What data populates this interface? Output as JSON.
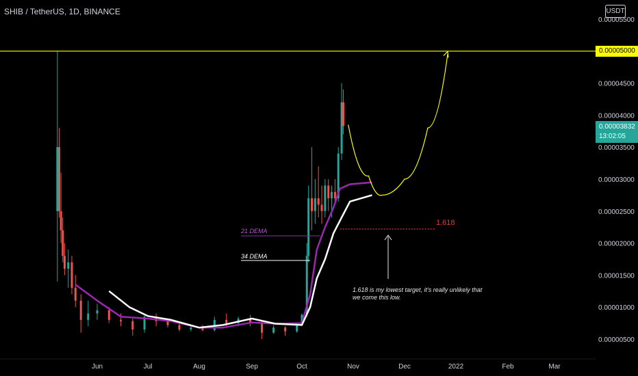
{
  "header": {
    "title": "SHIB / TetherUS, 1D, BINANCE",
    "currency_button": "USDT"
  },
  "price_tags": {
    "target": "0.00005000",
    "last_price": "0.00003832",
    "countdown": "13:02:05"
  },
  "annotations": {
    "ma21_label": "21 DEMA",
    "ma34_label": "34 DEMA",
    "fib_label": "1.618",
    "note": "1.618 is my lowest target, it's really unlikely that we come this low."
  },
  "chart_data": {
    "type": "candlestick",
    "title": "SHIB / TetherUS, 1D, BINANCE",
    "ylim": [
      3.3e-06,
      6e-06
    ],
    "y_tick_labels": [
      "0.00005500",
      "0.00005000",
      "0.00004500",
      "0.00004000",
      "0.00003500",
      "0.00003000",
      "0.00002500",
      "0.00002000",
      "0.00001500",
      "0.00001000",
      "0.00000500"
    ],
    "y_ticks": [
      5.5e-05,
      5e-05,
      4.5e-05,
      4e-05,
      3.5e-05,
      3e-05,
      2.5e-05,
      2e-05,
      1.5e-05,
      1e-05,
      5e-06
    ],
    "x_tick_labels": [
      "Jun",
      "Jul",
      "Aug",
      "Sep",
      "Oct",
      "Nov",
      "Dec",
      "2022",
      "Feb",
      "Mar"
    ],
    "x_tick_dates": [
      "2021-06-01",
      "2021-07-01",
      "2021-08-01",
      "2021-09-01",
      "2021-10-01",
      "2021-11-01",
      "2021-12-01",
      "2022-01-01",
      "2022-02-01",
      "2022-03-01"
    ],
    "xlim": [
      "2021-05-01",
      "2022-03-31"
    ],
    "grid": false,
    "colors": {
      "up": "#26a69a",
      "down": "#ef5350",
      "ma21": "#9c27b0",
      "ma34": "#ffffff",
      "target_line": "#ffff00",
      "projection": "#ffff00",
      "fib": "#e53935"
    },
    "target_price": 5e-05,
    "last_price": 3.832e-05,
    "fib_1618_price": 2.22e-05,
    "candles": [
      {
        "date": "2021-05-10",
        "o": 2.5e-05,
        "h": 5e-05,
        "l": 1.4e-05,
        "c": 3.5e-05
      },
      {
        "date": "2021-05-11",
        "o": 3.5e-05,
        "h": 3.8e-05,
        "l": 2.4e-05,
        "c": 2.5e-05
      },
      {
        "date": "2021-05-12",
        "o": 2.5e-05,
        "h": 3.1e-05,
        "l": 2e-05,
        "c": 2.2e-05
      },
      {
        "date": "2021-05-13",
        "o": 2.2e-05,
        "h": 2.4e-05,
        "l": 1.7e-05,
        "c": 1.8e-05
      },
      {
        "date": "2021-05-14",
        "o": 1.8e-05,
        "h": 2e-05,
        "l": 1.5e-05,
        "c": 1.6e-05
      },
      {
        "date": "2021-05-16",
        "o": 1.6e-05,
        "h": 1.9e-05,
        "l": 1.3e-05,
        "c": 1.7e-05
      },
      {
        "date": "2021-05-18",
        "o": 1.7e-05,
        "h": 1.8e-05,
        "l": 1.2e-05,
        "c": 1.3e-05
      },
      {
        "date": "2021-05-20",
        "o": 1.3e-05,
        "h": 1.5e-05,
        "l": 1e-05,
        "c": 1.1e-05
      },
      {
        "date": "2021-05-23",
        "o": 1.1e-05,
        "h": 1.2e-05,
        "l": 6e-06,
        "c": 8e-06
      },
      {
        "date": "2021-05-27",
        "o": 8e-06,
        "h": 1.1e-05,
        "l": 7e-06,
        "c": 9e-06
      },
      {
        "date": "2021-06-01",
        "o": 9e-06,
        "h": 1.05e-05,
        "l": 8e-06,
        "c": 9.5e-06
      },
      {
        "date": "2021-06-08",
        "o": 9.5e-06,
        "h": 1e-05,
        "l": 7.5e-06,
        "c": 8e-06
      },
      {
        "date": "2021-06-15",
        "o": 8e-06,
        "h": 9e-06,
        "l": 7e-06,
        "c": 7.8e-06
      },
      {
        "date": "2021-06-22",
        "o": 7.8e-06,
        "h": 8.2e-06,
        "l": 5.5e-06,
        "c": 6.5e-06
      },
      {
        "date": "2021-06-29",
        "o": 6.5e-06,
        "h": 9e-06,
        "l": 6e-06,
        "c": 8.5e-06
      },
      {
        "date": "2021-07-06",
        "o": 8.5e-06,
        "h": 9e-06,
        "l": 7e-06,
        "c": 7.8e-06
      },
      {
        "date": "2021-07-13",
        "o": 7.8e-06,
        "h": 8.2e-06,
        "l": 6.8e-06,
        "c": 7.2e-06
      },
      {
        "date": "2021-07-20",
        "o": 7.2e-06,
        "h": 7.4e-06,
        "l": 6.2e-06,
        "c": 6.5e-06
      },
      {
        "date": "2021-07-27",
        "o": 6.5e-06,
        "h": 7.2e-06,
        "l": 6.2e-06,
        "c": 6.8e-06
      },
      {
        "date": "2021-08-03",
        "o": 6.8e-06,
        "h": 7.2e-06,
        "l": 6.2e-06,
        "c": 6.4e-06
      },
      {
        "date": "2021-08-10",
        "o": 6.4e-06,
        "h": 8.5e-06,
        "l": 6.2e-06,
        "c": 8e-06
      },
      {
        "date": "2021-08-17",
        "o": 8e-06,
        "h": 9e-06,
        "l": 7e-06,
        "c": 7.5e-06
      },
      {
        "date": "2021-08-24",
        "o": 7.5e-06,
        "h": 8.5e-06,
        "l": 7e-06,
        "c": 8.2e-06
      },
      {
        "date": "2021-08-31",
        "o": 8.2e-06,
        "h": 8.8e-06,
        "l": 7e-06,
        "c": 7.5e-06
      },
      {
        "date": "2021-09-07",
        "o": 7.5e-06,
        "h": 7.8e-06,
        "l": 5e-06,
        "c": 6e-06
      },
      {
        "date": "2021-09-14",
        "o": 6e-06,
        "h": 7.2e-06,
        "l": 5.8e-06,
        "c": 6.8e-06
      },
      {
        "date": "2021-09-21",
        "o": 6.8e-06,
        "h": 7e-06,
        "l": 5.5e-06,
        "c": 6.2e-06
      },
      {
        "date": "2021-09-28",
        "o": 6.2e-06,
        "h": 7.5e-06,
        "l": 6e-06,
        "c": 7.2e-06
      },
      {
        "date": "2021-10-01",
        "o": 7.2e-06,
        "h": 9e-06,
        "l": 7e-06,
        "c": 8.8e-06
      },
      {
        "date": "2021-10-04",
        "o": 8.8e-06,
        "h": 2e-05,
        "l": 8.5e-06,
        "c": 1.8e-05
      },
      {
        "date": "2021-10-05",
        "o": 1.8e-05,
        "h": 2.9e-05,
        "l": 1.7e-05,
        "c": 2.7e-05
      },
      {
        "date": "2021-10-07",
        "o": 2.7e-05,
        "h": 3.5e-05,
        "l": 2.2e-05,
        "c": 2.5e-05
      },
      {
        "date": "2021-10-09",
        "o": 2.5e-05,
        "h": 3e-05,
        "l": 2.3e-05,
        "c": 2.7e-05
      },
      {
        "date": "2021-10-11",
        "o": 2.7e-05,
        "h": 3.2e-05,
        "l": 2.4e-05,
        "c": 2.6e-05
      },
      {
        "date": "2021-10-13",
        "o": 2.6e-05,
        "h": 2.9e-05,
        "l": 2.3e-05,
        "c": 2.5e-05
      },
      {
        "date": "2021-10-15",
        "o": 2.5e-05,
        "h": 3e-05,
        "l": 2.4e-05,
        "c": 2.9e-05
      },
      {
        "date": "2021-10-17",
        "o": 2.9e-05,
        "h": 3e-05,
        "l": 2.5e-05,
        "c": 2.7e-05
      },
      {
        "date": "2021-10-19",
        "o": 2.7e-05,
        "h": 2.9e-05,
        "l": 2.4e-05,
        "c": 2.8e-05
      },
      {
        "date": "2021-10-21",
        "o": 2.8e-05,
        "h": 3e-05,
        "l": 2.6e-05,
        "c": 2.7e-05
      },
      {
        "date": "2021-10-23",
        "o": 2.7e-05,
        "h": 3.5e-05,
        "l": 2.65e-05,
        "c": 3.4e-05
      },
      {
        "date": "2021-10-25",
        "o": 3.4e-05,
        "h": 4.5e-05,
        "l": 3.3e-05,
        "c": 4.2e-05
      },
      {
        "date": "2021-10-26",
        "o": 4.2e-05,
        "h": 4.4e-05,
        "l": 3.7e-05,
        "c": 3.83e-05
      }
    ],
    "series": [
      {
        "name": "21 DEMA",
        "points": [
          [
            "2021-05-20",
            1.35e-05
          ],
          [
            "2021-06-01",
            1.1e-05
          ],
          [
            "2021-06-15",
            8.5e-06
          ],
          [
            "2021-07-01",
            8.2e-06
          ],
          [
            "2021-07-15",
            7.8e-06
          ],
          [
            "2021-08-01",
            6.8e-06
          ],
          [
            "2021-08-15",
            6.8e-06
          ],
          [
            "2021-09-01",
            7.6e-06
          ],
          [
            "2021-09-15",
            7.4e-06
          ],
          [
            "2021-10-01",
            7.5e-06
          ],
          [
            "2021-10-06",
            1.2e-05
          ],
          [
            "2021-10-10",
            1.9e-05
          ],
          [
            "2021-10-15",
            2.25e-05
          ],
          [
            "2021-10-20",
            2.55e-05
          ],
          [
            "2021-10-24",
            2.85e-05
          ],
          [
            "2021-10-30",
            2.92e-05
          ],
          [
            "2021-11-12",
            2.95e-05
          ]
        ]
      },
      {
        "name": "34 DEMA",
        "points": [
          [
            "2021-06-08",
            1.25e-05
          ],
          [
            "2021-06-20",
            1e-05
          ],
          [
            "2021-07-01",
            8.6e-06
          ],
          [
            "2021-07-15",
            8e-06
          ],
          [
            "2021-08-01",
            6.8e-06
          ],
          [
            "2021-08-15",
            7.2e-06
          ],
          [
            "2021-09-01",
            8.2e-06
          ],
          [
            "2021-09-15",
            7.4e-06
          ],
          [
            "2021-10-01",
            7.2e-06
          ],
          [
            "2021-10-06",
            1e-05
          ],
          [
            "2021-10-10",
            1.45e-05
          ],
          [
            "2021-10-15",
            1.75e-05
          ],
          [
            "2021-10-20",
            2.15e-05
          ],
          [
            "2021-10-24",
            2.35e-05
          ],
          [
            "2021-10-30",
            2.65e-05
          ],
          [
            "2021-11-12",
            2.75e-05
          ]
        ]
      }
    ],
    "projection_path": [
      [
        "2021-10-29",
        3.85e-05
      ],
      [
        "2021-11-10",
        3.05e-05
      ],
      [
        "2021-11-18",
        2.75e-05
      ],
      [
        "2021-12-01",
        3e-05
      ],
      [
        "2021-12-15",
        3.8e-05
      ],
      [
        "2021-12-27",
        4.95e-05
      ]
    ]
  }
}
